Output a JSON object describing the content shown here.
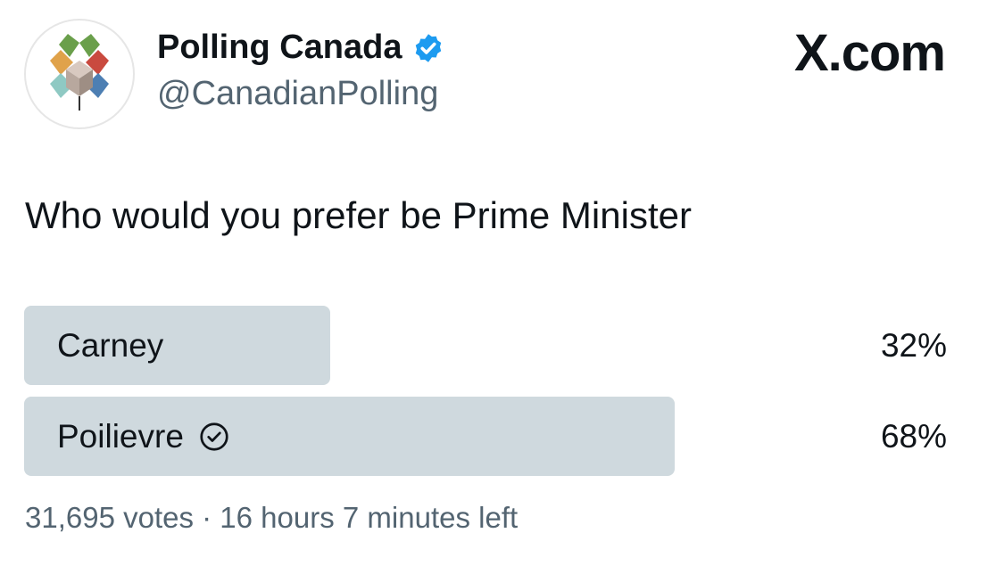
{
  "header": {
    "name": "Polling Canada",
    "handle": "@CanadianPolling",
    "brand": "X.com"
  },
  "question": "Who would you prefer be Prime Minister",
  "poll": {
    "options": [
      {
        "label": "Carney",
        "value": 32,
        "value_label": "32%"
      },
      {
        "label": "Poilievre",
        "value": 68,
        "value_label": "68%"
      }
    ],
    "footer": "31,695 votes · 16 hours 7 minutes left"
  }
}
